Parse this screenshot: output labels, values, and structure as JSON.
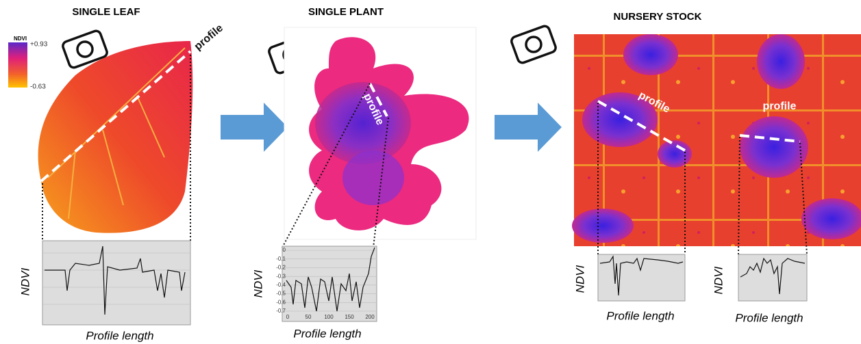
{
  "legend": {
    "title": "NDVI",
    "max": "+0.93",
    "min": "-0.63"
  },
  "panels": [
    {
      "title": "SINGLE LEAF",
      "profiles": [
        "profile"
      ],
      "plots": [
        {
          "y_label": "NDVI",
          "x_label": "Profile length"
        }
      ]
    },
    {
      "title": "SINGLE PLANT",
      "profiles": [
        "profile"
      ],
      "plots": [
        {
          "y_label": "NDVI",
          "x_label": "Profile length",
          "yticks": [
            "0",
            "-0.1",
            "-0.2",
            "-0.3",
            "-0.4",
            "-0.5",
            "-0.6",
            "-0.7"
          ],
          "xticks": [
            "0",
            "50",
            "100",
            "150",
            "200"
          ]
        }
      ]
    },
    {
      "title": "NURSERY STOCK",
      "profiles": [
        "profile",
        "profile"
      ],
      "plots": [
        {
          "y_label": "NDVI",
          "x_label": "Profile length"
        },
        {
          "y_label": "NDVI",
          "x_label": "Profile length"
        }
      ]
    }
  ]
}
